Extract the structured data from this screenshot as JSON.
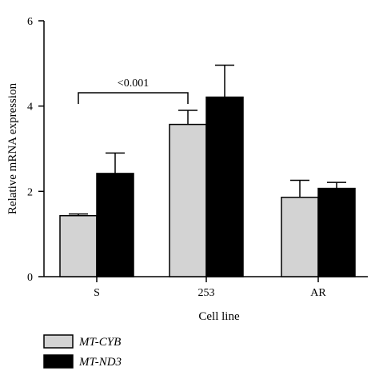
{
  "chart_data": {
    "type": "bar",
    "categories": [
      "S",
      "253",
      "AR"
    ],
    "series": [
      {
        "name": "MT-CYB",
        "color": "#d3d3d3",
        "values": [
          1.43,
          3.57,
          1.86
        ],
        "errors": [
          0.04,
          0.33,
          0.4
        ]
      },
      {
        "name": "MT-ND3",
        "color": "#000000",
        "values": [
          2.42,
          4.21,
          2.07
        ],
        "errors": [
          0.48,
          0.75,
          0.14
        ]
      }
    ],
    "xlabel": "Cell line",
    "ylabel": "Relative mRNA expression",
    "ylim": [
      0,
      6
    ],
    "yticks": [
      0,
      2,
      4,
      6
    ],
    "ytick_labels": [
      "0",
      "2",
      "4",
      "6"
    ],
    "grid": false,
    "legend_position": "bottom-left",
    "annotations": [
      {
        "text": "<0.001",
        "from_category": "S",
        "to_category": "253",
        "type": "significance-bracket"
      }
    ]
  }
}
